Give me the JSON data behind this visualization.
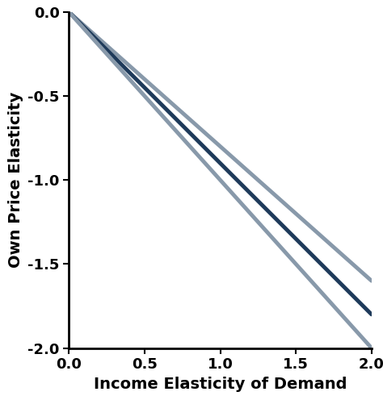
{
  "xlabel": "Income Elasticity of Demand",
  "ylabel": "Own Price Elasticity",
  "xlim": [
    0.0,
    2.0
  ],
  "ylim": [
    -2.0,
    0.0
  ],
  "xticks": [
    0.0,
    0.5,
    1.0,
    1.5,
    2.0
  ],
  "yticks": [
    0.0,
    -0.5,
    -1.0,
    -1.5,
    -2.0
  ],
  "xtick_labels": [
    "0.0",
    "0.5",
    "1.0",
    "1.5",
    "2.0"
  ],
  "ytick_labels": [
    "0.0",
    "-0.5",
    "-1.0",
    "-1.5",
    "-2.0"
  ],
  "background_color": "#ffffff",
  "lines": [
    {
      "slope": -0.8,
      "color": "#8899aa",
      "linewidth": 3.5
    },
    {
      "slope": -0.9,
      "color": "#1e3a5a",
      "linewidth": 3.5
    },
    {
      "slope": -1.0,
      "color": "#8899aa",
      "linewidth": 3.5
    }
  ],
  "xlabel_fontsize": 14,
  "ylabel_fontsize": 14,
  "tick_fontsize": 13,
  "tick_fontweight": "bold",
  "label_fontweight": "bold",
  "spine_linewidth": 2.0
}
